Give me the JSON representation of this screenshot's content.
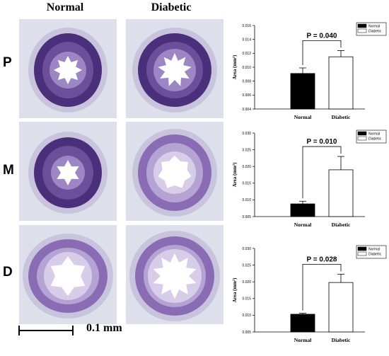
{
  "headers": {
    "normal": "Normal",
    "diabetic": "Diabetic"
  },
  "rows": [
    "P",
    "M",
    "D"
  ],
  "scale_bar": {
    "label": "0.1 mm"
  },
  "colors": {
    "stain_dark": "#4a2f7a",
    "stain_mid": "#8a6cb5",
    "tissue_bg": "#dde0ea",
    "lumen": "#ffffff"
  },
  "chart_data": [
    {
      "type": "bar",
      "categories": [
        "Normal",
        "Diabetic"
      ],
      "values": [
        0.0091,
        0.0115
      ],
      "errors": [
        0.0008,
        0.0009
      ],
      "bar_fills": [
        "#000000",
        "#ffffff"
      ],
      "ylabel": "Area (mm²)",
      "ylim": [
        0.004,
        0.016
      ],
      "ticks": [
        "0.004",
        "0.006",
        "0.008",
        "0.010",
        "0.012",
        "0.014",
        "0.016"
      ],
      "legend": [
        "Normal",
        "Diabetic"
      ],
      "legend_position": "top-right",
      "annotation": "P = 0.040"
    },
    {
      "type": "bar",
      "categories": [
        "Normal",
        "Diabetic"
      ],
      "values": [
        0.0088,
        0.019
      ],
      "errors": [
        0.0008,
        0.004
      ],
      "bar_fills": [
        "#000000",
        "#ffffff"
      ],
      "ylabel": "Area (mm²)",
      "ylim": [
        0.005,
        0.03
      ],
      "ticks": [
        "0.005",
        "0.010",
        "0.015",
        "0.020",
        "0.025",
        "0.030"
      ],
      "tick_labels": [
        "0.005",
        "0.010",
        "0.015",
        "0.020",
        "0.025",
        "0.030"
      ],
      "legend": [
        "Normal",
        "Diabetic"
      ],
      "legend_position": "top-right",
      "annotation": "P = 0.010"
    },
    {
      "type": "bar",
      "categories": [
        "Normal",
        "Diabetic"
      ],
      "values": [
        0.0103,
        0.0198
      ],
      "errors": [
        0.0003,
        0.0025
      ],
      "bar_fills": [
        "#000000",
        "#ffffff"
      ],
      "ylabel": "Area (mm²)",
      "ylim": [
        0.005,
        0.03
      ],
      "ticks": [
        "0.005",
        "0.010",
        "0.015",
        "0.020",
        "0.025",
        "0.030"
      ],
      "tick_labels": [
        "0.005",
        "0.010",
        "0.015",
        "0.020",
        "0.025",
        "0.030"
      ],
      "legend": [
        "Normal",
        "Diabetic"
      ],
      "legend_position": "top-right",
      "annotation": "P = 0.028"
    }
  ]
}
